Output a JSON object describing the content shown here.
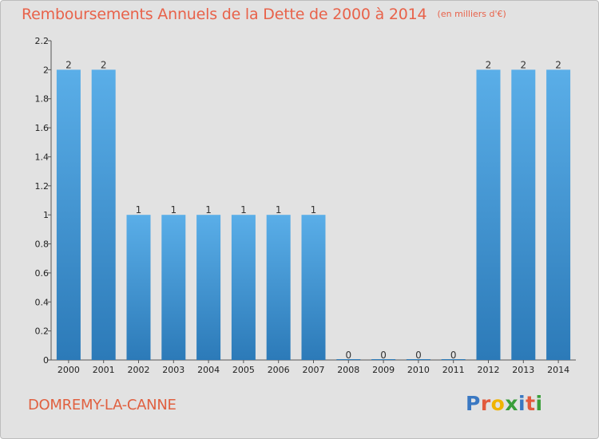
{
  "chart_data": {
    "type": "bar",
    "title": "Remboursements Annuels de la Dette de 2000 à 2014",
    "subtitle": "(en milliers d'€)",
    "categories": [
      "2000",
      "2001",
      "2002",
      "2003",
      "2004",
      "2005",
      "2006",
      "2007",
      "2008",
      "2009",
      "2010",
      "2011",
      "2012",
      "2013",
      "2014"
    ],
    "values": [
      2,
      2,
      1,
      1,
      1,
      1,
      1,
      1,
      0,
      0,
      0,
      0,
      2,
      2,
      2
    ],
    "value_labels": [
      "2",
      "2",
      "1",
      "1",
      "1",
      "1",
      "1",
      "1",
      "0",
      "0",
      "0",
      "0",
      "2",
      "2",
      "2"
    ],
    "yticks": [
      "0",
      "0.2",
      "0.4",
      "0.6",
      "0.8",
      "1",
      "1.2",
      "1.4",
      "1.6",
      "1.8",
      "2",
      "2.2"
    ],
    "ylim": [
      0,
      2.2
    ],
    "xlabel": "",
    "ylabel": "",
    "grid": false,
    "bar_color_top": "#5aaee8",
    "bar_color_bottom": "#2c7ab8"
  },
  "location": "DOMREMY-LA-CANNE",
  "logo": {
    "p": "P",
    "r": "r",
    "o": "o",
    "x": "x",
    "i1": "i",
    "t": "t",
    "i2": "i"
  }
}
